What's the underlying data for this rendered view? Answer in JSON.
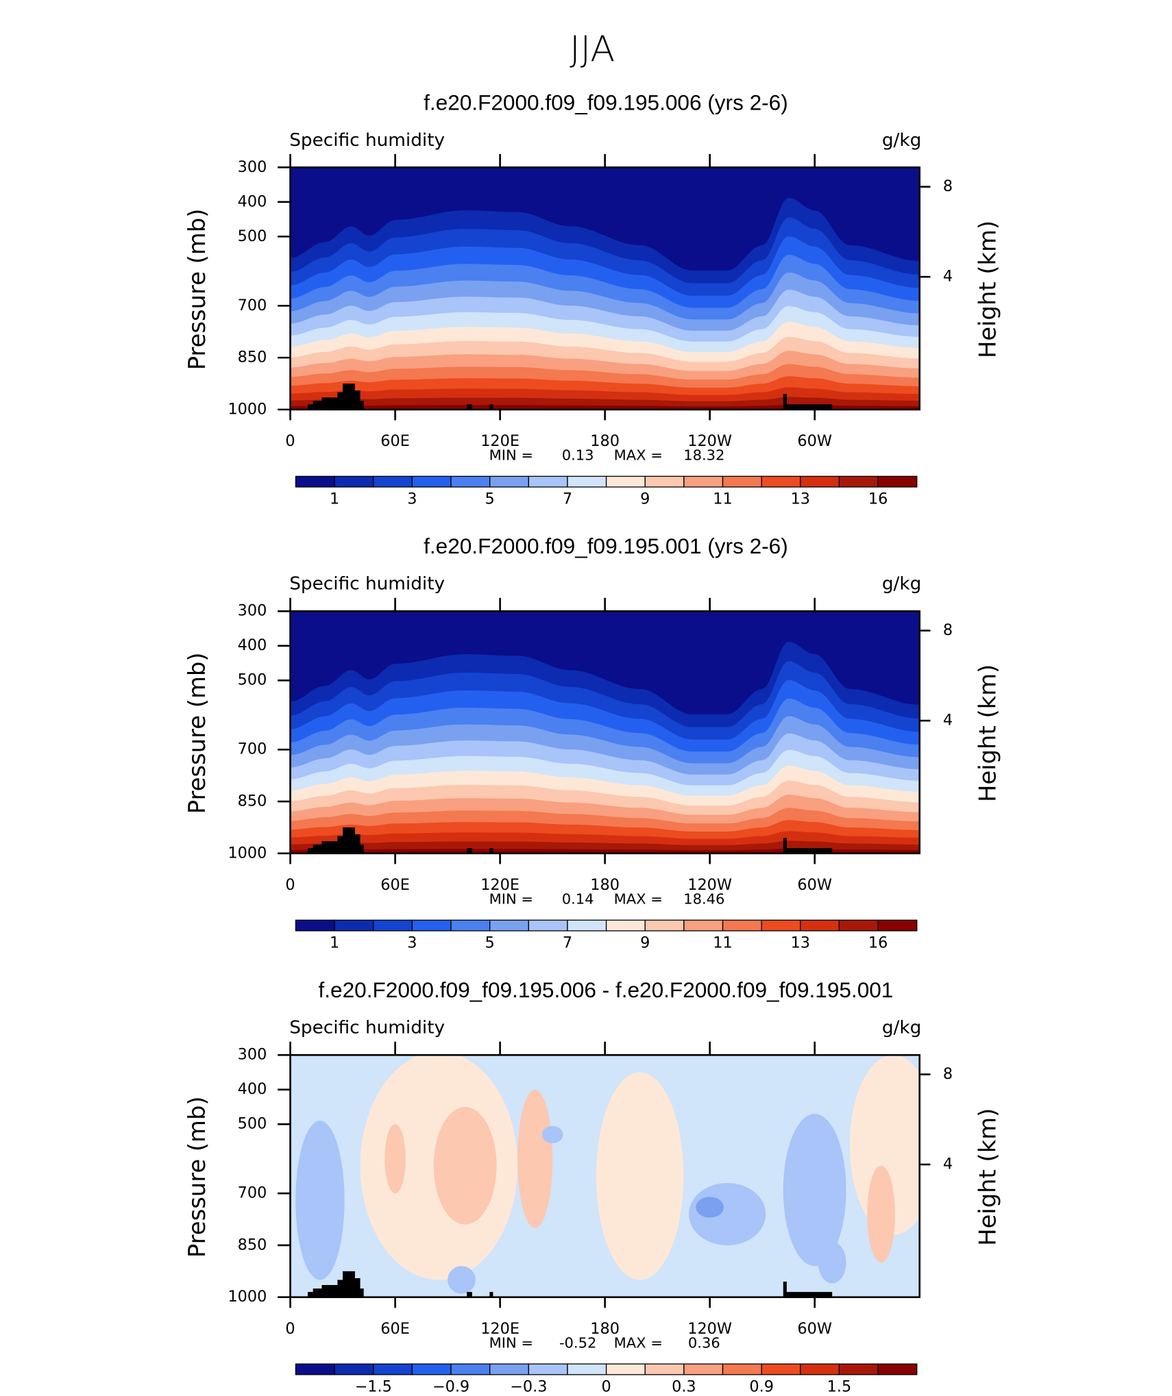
{
  "title": "JJA",
  "chart_data": [
    {
      "type": "contour",
      "title": "f.e20.F2000.f09_f09.195.006 (yrs 2-6)",
      "left_string": "Specific humidity",
      "right_string": "g/kg",
      "y_label": "Pressure (mb)",
      "y2_label": "Height (km)",
      "xlim": [
        0,
        360
      ],
      "xticks": [
        0,
        {
          "value": 60,
          "label": "60E"
        },
        {
          "value": 120,
          "label": "120E"
        },
        180,
        {
          "value": 240,
          "label": "120W"
        },
        {
          "value": 300,
          "label": "60W"
        }
      ],
      "ylim": [
        1000,
        300
      ],
      "yticks": [
        300,
        400,
        500,
        700,
        850,
        1000
      ],
      "y2ticks": [
        8,
        4
      ],
      "min_label": "MIN =",
      "min": 0.13,
      "max_label": "MAX =",
      "max": 18.32,
      "colorbar_labels": [
        1,
        3,
        5,
        7,
        9,
        11,
        13,
        16
      ],
      "colors": [
        "#0a0e8a",
        "#0c2bb0",
        "#1444d0",
        "#2460f0",
        "#4a80f0",
        "#7aa0f0",
        "#a8c4f8",
        "#d0e4fa",
        "#fde8d8",
        "#fcc8b0",
        "#f8a080",
        "#f47850",
        "#ec4c20",
        "#d43010",
        "#a81808",
        "#880000"
      ]
    },
    {
      "type": "contour",
      "title": "f.e20.F2000.f09_f09.195.001 (yrs 2-6)",
      "left_string": "Specific humidity",
      "right_string": "g/kg",
      "y_label": "Pressure (mb)",
      "y2_label": "Height (km)",
      "xlim": [
        0,
        360
      ],
      "xticks": [
        0,
        {
          "value": 60,
          "label": "60E"
        },
        {
          "value": 120,
          "label": "120E"
        },
        180,
        {
          "value": 240,
          "label": "120W"
        },
        {
          "value": 300,
          "label": "60W"
        }
      ],
      "ylim": [
        1000,
        300
      ],
      "yticks": [
        300,
        400,
        500,
        700,
        850,
        1000
      ],
      "y2ticks": [
        8,
        4
      ],
      "min_label": "MIN =",
      "min": 0.14,
      "max_label": "MAX =",
      "max": 18.46,
      "colorbar_labels": [
        1,
        3,
        5,
        7,
        9,
        11,
        13,
        16
      ],
      "colors": [
        "#0a0e8a",
        "#0c2bb0",
        "#1444d0",
        "#2460f0",
        "#4a80f0",
        "#7aa0f0",
        "#a8c4f8",
        "#d0e4fa",
        "#fde8d8",
        "#fcc8b0",
        "#f8a080",
        "#f47850",
        "#ec4c20",
        "#d43010",
        "#a81808",
        "#880000"
      ]
    },
    {
      "type": "contour",
      "title": "f.e20.F2000.f09_f09.195.006 - f.e20.F2000.f09_f09.195.001",
      "left_string": "Specific humidity",
      "right_string": "g/kg",
      "y_label": "Pressure (mb)",
      "y2_label": "Height (km)",
      "xlim": [
        0,
        360
      ],
      "xticks": [
        0,
        {
          "value": 60,
          "label": "60E"
        },
        {
          "value": 120,
          "label": "120E"
        },
        180,
        {
          "value": 240,
          "label": "120W"
        },
        {
          "value": 300,
          "label": "60W"
        }
      ],
      "ylim": [
        1000,
        300
      ],
      "yticks": [
        300,
        400,
        500,
        700,
        850,
        1000
      ],
      "y2ticks": [
        8,
        4
      ],
      "min_label": "MIN =",
      "min": -0.52,
      "max_label": "MAX =",
      "max": 0.36,
      "colorbar_labels": [
        {
          "value": -1.5,
          "label": "−1.5"
        },
        {
          "value": -0.9,
          "label": "−0.9"
        },
        {
          "value": -0.3,
          "label": "−0.3"
        },
        0,
        0.3,
        0.9,
        1.5
      ],
      "colors": [
        "#0a0e8a",
        "#0c2bb0",
        "#1444d0",
        "#2460f0",
        "#4a80f0",
        "#7aa0f0",
        "#a8c4f8",
        "#d0e4fa",
        "#fde8d8",
        "#fcc8b0",
        "#f8a080",
        "#f47850",
        "#ec4c20",
        "#d43010",
        "#a81808",
        "#880000"
      ]
    }
  ]
}
